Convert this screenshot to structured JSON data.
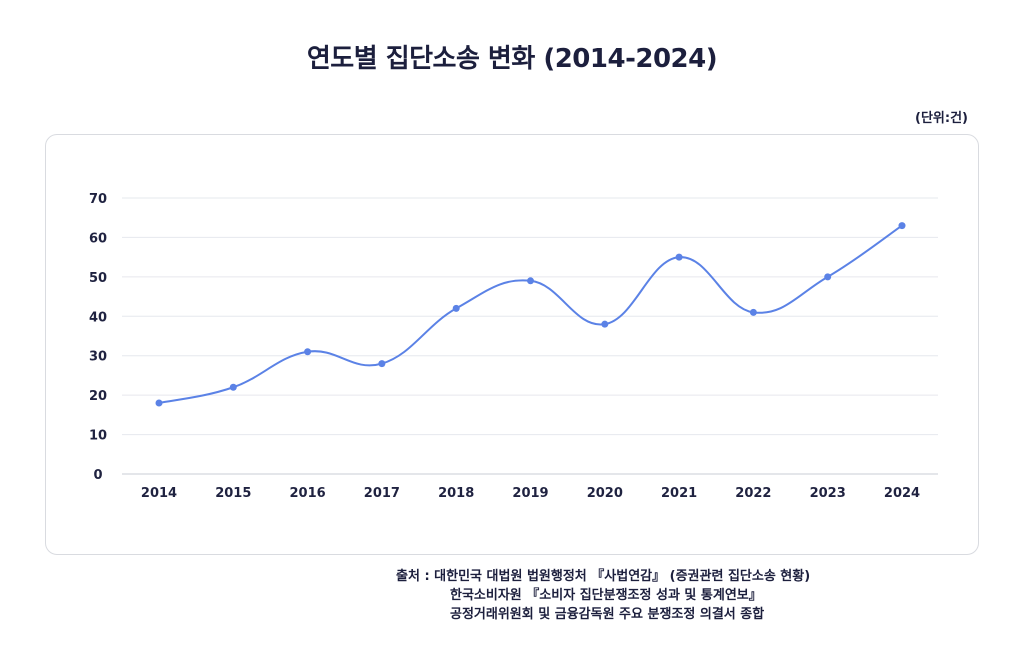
{
  "title": "연도별 집단소송 변화 (2014-2024)",
  "unit": "(단위:건)",
  "source": {
    "prefix": "출처 : ",
    "line1": "대한민국 대법원 법원행정처 『사법연감』 (증권관련 집단소송 현황)",
    "line2": "한국소비자원 『소비자 집단분쟁조정 성과 및 통계연보』",
    "line3": "공정거래위원회 및 금융감독원 주요 분쟁조정 의결서 종합"
  },
  "colors": {
    "line": "#5b82e6",
    "grid": "#e6e8ee",
    "axis": "#1f2240"
  },
  "chart_data": {
    "type": "line",
    "title": "연도별 집단소송 변화 (2014-2024)",
    "xlabel": "",
    "ylabel": "",
    "categories": [
      "2014",
      "2015",
      "2016",
      "2017",
      "2018",
      "2019",
      "2020",
      "2021",
      "2022",
      "2023",
      "2024"
    ],
    "series": [
      {
        "values": [
          18,
          22,
          31,
          28,
          42,
          49,
          38,
          55,
          41,
          50,
          63
        ]
      }
    ],
    "ylim": [
      0,
      70
    ],
    "yticks": [
      0,
      10,
      20,
      30,
      40,
      50,
      60,
      70
    ],
    "grid": true,
    "legend": "none",
    "smooth": true
  }
}
